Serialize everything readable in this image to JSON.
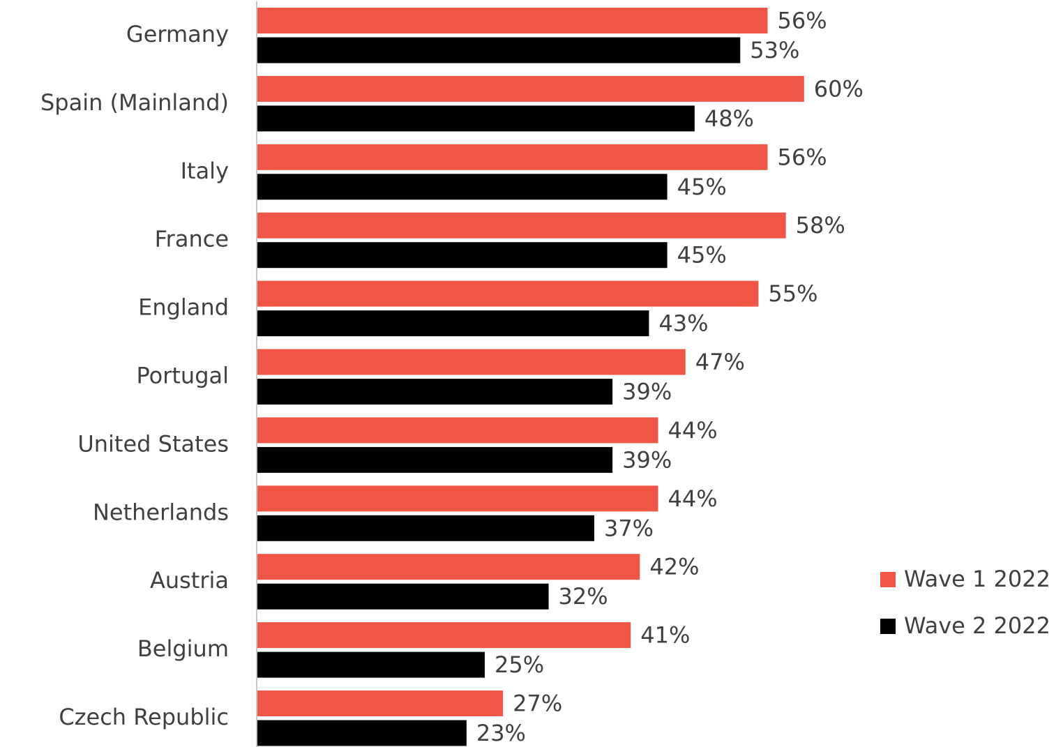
{
  "chart_data": {
    "type": "bar",
    "orientation": "horizontal",
    "categories": [
      "Germany",
      "Spain (Mainland)",
      "Italy",
      "France",
      "England",
      "Portugal",
      "United States",
      "Netherlands",
      "Austria",
      "Belgium",
      "Czech Republic"
    ],
    "series": [
      {
        "name": "Wave 1 2022",
        "color": "#f05545",
        "values": [
          56,
          60,
          56,
          58,
          55,
          47,
          44,
          44,
          42,
          41,
          27
        ],
        "labels": [
          "56%",
          "60%",
          "56%",
          "58%",
          "55%",
          "47%",
          "44%",
          "44%",
          "42%",
          "41%",
          "27%"
        ]
      },
      {
        "name": "Wave 2 2022",
        "color": "#000000",
        "values": [
          53,
          48,
          45,
          45,
          43,
          39,
          39,
          37,
          32,
          25,
          23
        ],
        "labels": [
          "53%",
          "48%",
          "45%",
          "45%",
          "43%",
          "39%",
          "39%",
          "37%",
          "32%",
          "25%",
          "23%"
        ]
      }
    ],
    "xlim": [
      0,
      60
    ],
    "grid": false,
    "legend_position": "right"
  }
}
